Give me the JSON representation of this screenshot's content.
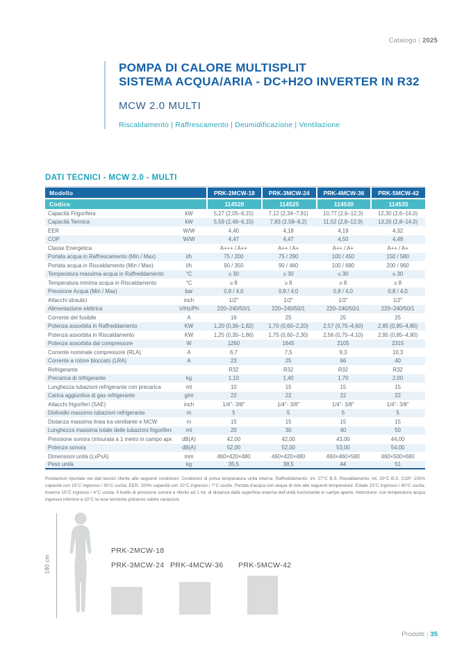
{
  "page_header": {
    "catalog_label": "Catalogo",
    "separator": "|",
    "year": "2025"
  },
  "title": {
    "line1": "POMPA DI CALORE MULTISPLIT",
    "line2": "SISTEMA ACQUA/ARIA - DC+H2O INVERTER IN R32",
    "model": "MCW 2.0 MULTI",
    "functions": "Riscaldamento | Raffrescamento | Deumidificazione | Ventilazione"
  },
  "section": {
    "heading": "DATI TECNICI - MCW 2.0 - MULTI"
  },
  "table": {
    "model_row_label": "Modello",
    "code_row_label": "Codice",
    "models": [
      "PRK-2MCW-18",
      "PRK-3MCW-24",
      "PRK-4MCW-36",
      "PRK-5MCW-42"
    ],
    "codes": [
      "114520",
      "114525",
      "114530",
      "114535"
    ],
    "rows": [
      {
        "label": "Capacità Frigorifera",
        "unit": "kW",
        "values": [
          "5,27 (2,05–6,15)",
          "7,12 (2,34–7,91)",
          "10,77 (2,6–12,3)",
          "12,30 (2,6–14,0)"
        ]
      },
      {
        "label": "Capacità Termica",
        "unit": "kW",
        "values": [
          "5,59 (2,49–6,15)",
          "7,83 (2,58–8,2)",
          "11,52 (2,8–12,9)",
          "13,20 (2,8–14,0)"
        ]
      },
      {
        "label": "EER",
        "unit": "W/W",
        "values": [
          "4,40",
          "4,18",
          "4,19",
          "4,32"
        ]
      },
      {
        "label": "COP",
        "unit": "W/W",
        "values": [
          "4,47",
          "4,47",
          "4,50",
          "4,48"
        ]
      },
      {
        "label": "Classe Energetica",
        "unit": "",
        "values": [
          "A+++ / A++",
          "A++ / A+",
          "A++ / A+",
          "A++ / A+"
        ]
      },
      {
        "label": "Portata acqua in Raffrescamento (Min / Max)",
        "unit": "l/h",
        "values": [
          "75 / 200",
          "75 / 290",
          "100 / 450",
          "150 / 580"
        ]
      },
      {
        "label": "Portata acqua in Riscaldamento (Min / Max)",
        "unit": "l/h",
        "values": [
          "90 / 350",
          "90 / 460",
          "100 / 680",
          "200 / 960"
        ]
      },
      {
        "label": "Temperatura massima acqua in Raffreddamento",
        "unit": "°C",
        "values": [
          "≤ 30",
          "≤ 30",
          "≤ 30",
          "≤ 30"
        ]
      },
      {
        "label": "Temperatura minima acqua in Riscaldamento",
        "unit": "°C",
        "values": [
          "≥ 8",
          "≥ 8",
          "≥ 8",
          "≥ 8"
        ]
      },
      {
        "label": "Pressione Acqua (Min / Max)",
        "unit": "bar",
        "values": [
          "0,8 / 4,0",
          "0,8 / 4,0",
          "0,8 / 4,0",
          "0,8 / 4,0"
        ]
      },
      {
        "label": "Attacchi idraulici",
        "unit": "inch",
        "values": [
          "1/2\"",
          "1/2\"",
          "1/2\"",
          "1/2\""
        ]
      },
      {
        "label": "Alimentazione elettrica",
        "unit": "V/Hz/Ph",
        "values": [
          "220–240/50/1",
          "220–240/50/1",
          "220–240/50/1",
          "220–240/50/1"
        ]
      },
      {
        "label": "Corrente del fusibile",
        "unit": "A",
        "values": [
          "16",
          "25",
          "25",
          "25"
        ]
      },
      {
        "label": "Potenza assorbita in Raffreddamento",
        "unit": "KW",
        "values": [
          "1,20 (0,36–1,82)",
          "1,70 (0,60–2,20)",
          "2,57 (0,75–4,60)",
          "2,85 (0,85–4,80)"
        ]
      },
      {
        "label": "Potenza assorbita in Riscaldamento",
        "unit": "KW",
        "values": [
          "1,25 (0,35–1,86)",
          "1,75 (0,60–2,30)",
          "2,56 (0,75–4,10)",
          "2,95 (0,85–4,90)"
        ]
      },
      {
        "label": "Potenza assorbita dal compressore",
        "unit": "W",
        "values": [
          "1260",
          "1645",
          "2105",
          "2315"
        ]
      },
      {
        "label": "Corrente nominale compressore (RLA)",
        "unit": "A",
        "values": [
          "6,7",
          "7,5",
          "9,3",
          "10,3"
        ]
      },
      {
        "label": "Corrente a rotore bloccato (LRA)",
        "unit": "A",
        "values": [
          "23",
          "25",
          "66",
          "40"
        ]
      },
      {
        "label": "Refrigerante",
        "unit": "",
        "values": [
          "R32",
          "R32",
          "R32",
          "R32"
        ]
      },
      {
        "label": "Precarica di refrigerante",
        "unit": "kg",
        "values": [
          "1,10",
          "1,40",
          "1,70",
          "2,00"
        ]
      },
      {
        "label": "Lunghezza tubazioni refrigerante con precarica",
        "unit": "mt",
        "values": [
          "10",
          "15",
          "15",
          "15"
        ]
      },
      {
        "label": "Carica aggiuntiva di gas refrigerante",
        "unit": "g/m",
        "values": [
          "22",
          "22",
          "22",
          "22"
        ]
      },
      {
        "label": "Attacchi frigoriferi (SAE)",
        "unit": "inch",
        "values": [
          "1/4\"- 3/8\"",
          "1/4\"- 3/8\"",
          "1/4\"- 3/8\"",
          "1/4\"- 3/8\""
        ]
      },
      {
        "label": "Dislivello massimo tubazioni refrigerante",
        "unit": "m",
        "values": [
          "5",
          "5",
          "5",
          "5"
        ]
      },
      {
        "label": "Distanza massima linea tra ventilante e MCW",
        "unit": "m",
        "values": [
          "15",
          "15",
          "15",
          "15"
        ]
      },
      {
        "label": "Lunghezza massima totale delle tubazioni frigorifere",
        "unit": "mt",
        "values": [
          "20",
          "30",
          "40",
          "50"
        ]
      },
      {
        "label": "Pressione sonora (misurata a 1 metro in campo aperto)",
        "unit": "dB(A)",
        "values": [
          "42,00",
          "42,00",
          "43,00",
          "44,00"
        ]
      },
      {
        "label": "Potenza sonora",
        "unit": "dB(A)",
        "values": [
          "52,00",
          "52,00",
          "53,00",
          "54,00"
        ]
      },
      {
        "label": "Dimensioni unità (LxPxA)",
        "unit": "mm",
        "values": [
          "460×420×480",
          "460×420×480",
          "460×460×580",
          "460×500×680"
        ]
      },
      {
        "label": "Peso unità",
        "unit": "kg",
        "values": [
          "35,5",
          "38,5",
          "44",
          "51"
        ]
      }
    ]
  },
  "footnote": "Prestazioni riportate nei dati tecnici riferite alle seguenti condizioni: Condizioni di prova temperatura unità interna: Raffreddamento: int. 27°C B.S. Riscaldamento: int. 20°C B.S. COP: 100% capacità con 15°C ingresso / 30°C uscita; EER: 100% capacità con 10°C ingresso / 7°C uscita. Portata d'acqua con acqua di rete alle seguenti temperature: Estate 15°C ingresso / 40°C uscita; Inverno 15°C ingresso / 4°C uscita. Il livello di pressione sonora è riferito ad 1 mt. di distanza dalla superficie esterna dell'unità funzionante in campo aperto. Attenzione: con temperatura acqua ingresso inferiore a 10°C le rese termiche potranno subire variazioni.",
  "figure": {
    "height_label": "180 cm",
    "labels": [
      "PRK-2MCW-18",
      "PRK-3MCW-24",
      "PRK-4MCW-36",
      "PRK-5MCW-42"
    ]
  },
  "page_footer": {
    "section_label": "Prodotti",
    "separator": "|",
    "page_number": "35"
  },
  "colors": {
    "title_blue": "#1360a8",
    "accent_teal": "#1ba3ba",
    "table_header_navy": "#1a69a7",
    "code_row_teal": "#48bac7",
    "row_stripe": "#e9f2f8",
    "silhouette_gray": "#d6d9da"
  }
}
